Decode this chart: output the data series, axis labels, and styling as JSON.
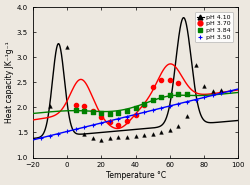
{
  "title": "",
  "xlabel": "Temperature °C",
  "ylabel": "Heat capacity JK⁻¹g⁻¹",
  "xlim": [
    -20,
    100
  ],
  "ylim": [
    1.0,
    4.0
  ],
  "legend": [
    "pH 4.10",
    "pH 3.70",
    "pH 3.84",
    "pH 3.50"
  ],
  "legend_colors": [
    "black",
    "red",
    "green",
    "blue"
  ],
  "background_color": "#ede8e0",
  "xticks": [
    -20,
    0,
    20,
    40,
    60,
    80,
    100
  ],
  "yticks": [
    1.0,
    1.5,
    2.0,
    2.5,
    3.0,
    3.5,
    4.0
  ]
}
